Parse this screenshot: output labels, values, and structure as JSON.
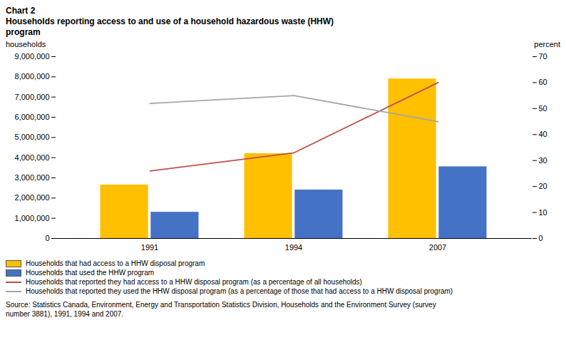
{
  "chart_data": {
    "type": "bar",
    "title": "Chart 2",
    "subtitle": "Households reporting access to and use of a household hazardous waste (HHW)\nprogram",
    "ylabel": "households",
    "y2label": "percent",
    "categories": [
      "1991",
      "1994",
      "2007"
    ],
    "series": [
      {
        "name": "Households that had access to a HHW disposal program",
        "type": "bar",
        "color": "#FFC000",
        "values": [
          2650000,
          4200000,
          7900000
        ]
      },
      {
        "name": "Households that used the HHW program",
        "type": "bar",
        "color": "#4472C4",
        "values": [
          1300000,
          2400000,
          3550000
        ]
      },
      {
        "name": "Households that reported they had access to a HHW disposal program (as a percentage of all households)",
        "type": "line",
        "axis": "y2",
        "color": "#C0504D",
        "values": [
          26.0,
          33.0,
          60.0
        ]
      },
      {
        "name": "Households that reported they used the HHW disposal program (as a percentage of those that had access to a HHW disposal program)",
        "type": "line",
        "axis": "y2",
        "color": "#A6A6A6",
        "values": [
          52.0,
          55.0,
          45.0
        ]
      }
    ],
    "ylim": [
      0,
      9000000
    ],
    "yticks": [
      0,
      {
        "value": 1000000,
        "label": "1,000,000"
      },
      {
        "value": 2000000,
        "label": "2,000,000"
      },
      {
        "value": 3000000,
        "label": "3,000,000"
      },
      {
        "value": 4000000,
        "label": "4,000,000"
      },
      {
        "value": 5000000,
        "label": "5,000,000"
      },
      {
        "value": 6000000,
        "label": "6,000,000"
      },
      {
        "value": 7000000,
        "label": "7,000,000"
      },
      {
        "value": 8000000,
        "label": "8,000,000"
      },
      {
        "value": 9000000,
        "label": "9,000,000"
      }
    ],
    "y2lim": [
      0,
      70
    ],
    "y2ticks": [
      0,
      10,
      20,
      30,
      40,
      50,
      60,
      70
    ],
    "grid": false,
    "legend": "bottom",
    "caption": "Source: Statistics Canada, Environment, Energy and Transportation Statistics Division, Households and the Environment Survey (survey\nnumber 3881), 1991, 1994 and 2007."
  }
}
